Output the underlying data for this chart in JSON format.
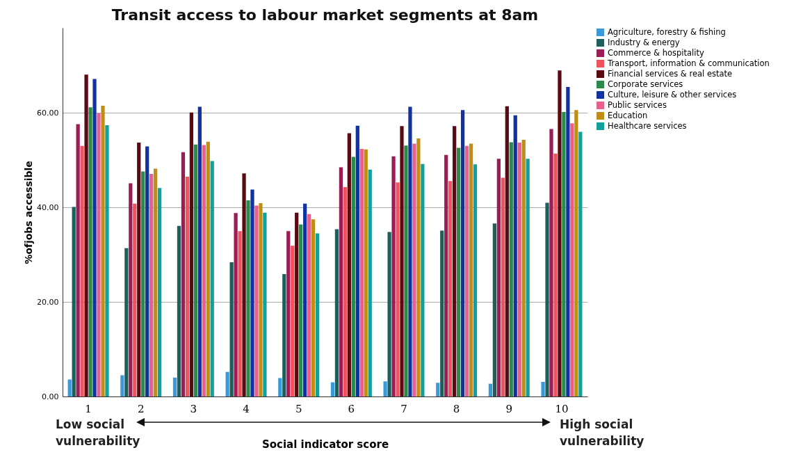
{
  "chart_data": {
    "type": "bar",
    "title": "Transit access to labour market segments at 8am",
    "xlabel": "Social indicator score",
    "ylabel": "%ofjobs accessible",
    "categories": [
      "1",
      "2",
      "3",
      "4",
      "5",
      "6",
      "7",
      "8",
      "9",
      "10"
    ],
    "series": [
      {
        "name": "Agriculture, forestry & fishing",
        "color": "#3a9ad9",
        "values": [
          3.6,
          4.5,
          4.0,
          5.2,
          3.9,
          3.0,
          3.2,
          2.9,
          2.7,
          3.1
        ]
      },
      {
        "name": "Industry & energy",
        "color": "#1e5f5c",
        "values": [
          40.1,
          31.4,
          36.1,
          28.4,
          25.9,
          35.4,
          34.8,
          35.1,
          36.6,
          41.0
        ]
      },
      {
        "name": "Commerce & hospitality",
        "color": "#9b1d55",
        "values": [
          57.6,
          45.1,
          51.7,
          38.8,
          35.0,
          48.5,
          50.8,
          51.1,
          50.3,
          56.6
        ]
      },
      {
        "name": "Transport, information & communication",
        "color": "#f0535e",
        "values": [
          53.0,
          40.8,
          46.5,
          35.0,
          31.9,
          44.3,
          45.3,
          45.6,
          46.3,
          51.4
        ]
      },
      {
        "name": "Financial services & real estate",
        "color": "#5a0a12",
        "values": [
          68.1,
          53.7,
          60.1,
          47.2,
          38.9,
          55.7,
          57.2,
          57.2,
          61.4,
          69.0
        ]
      },
      {
        "name": "Corporate services",
        "color": "#2a8a4a",
        "values": [
          61.2,
          47.6,
          53.3,
          41.5,
          36.4,
          50.7,
          53.1,
          52.6,
          53.8,
          60.2
        ]
      },
      {
        "name": "Culture, leisure & other services",
        "color": "#1232a0",
        "values": [
          67.2,
          52.9,
          61.3,
          43.8,
          40.8,
          57.3,
          61.3,
          60.6,
          59.5,
          65.5
        ]
      },
      {
        "name": "Public services",
        "color": "#e8608f",
        "values": [
          59.9,
          47.1,
          53.2,
          40.4,
          38.6,
          52.4,
          53.5,
          53.0,
          53.7,
          57.8
        ]
      },
      {
        "name": "Education",
        "color": "#c08e14",
        "values": [
          61.5,
          48.2,
          53.9,
          40.9,
          37.5,
          52.3,
          54.6,
          53.5,
          54.3,
          60.6
        ]
      },
      {
        "name": "Healthcare services",
        "color": "#14a09a",
        "values": [
          57.4,
          44.1,
          49.8,
          38.9,
          34.5,
          48.0,
          49.2,
          49.1,
          50.3,
          56.0
        ]
      }
    ],
    "ylim": [
      0,
      78
    ],
    "yticks": [
      {
        "value": 0,
        "label": "0.00"
      },
      {
        "value": 20,
        "label": "20.00"
      },
      {
        "value": 40,
        "label": "40.00"
      },
      {
        "value": 60,
        "label": "60.00"
      }
    ],
    "grid": "y",
    "legend": "top right",
    "annotations": [
      "Low social vulnerability",
      "High social vulnerability"
    ]
  }
}
